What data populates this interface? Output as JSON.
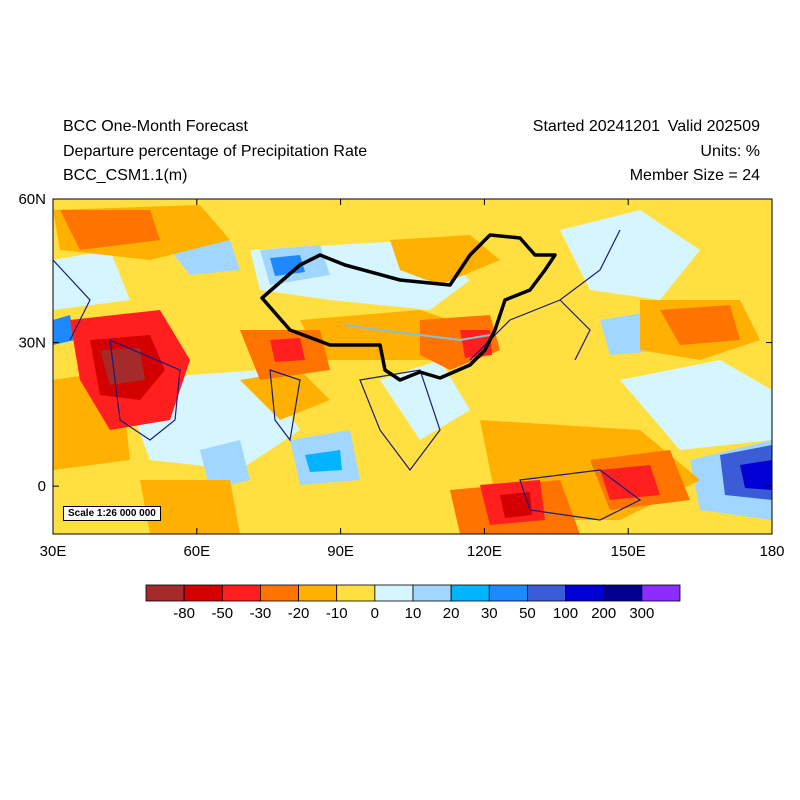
{
  "header": {
    "title": "BCC One-Month Forecast",
    "subtitle": "Departure percentage of Precipitation Rate",
    "model": "BCC_CSM1.1(m)",
    "started": "Started 20241201",
    "valid": "Valid 202509",
    "units": "Units: %",
    "member_size": "Member Size = 24"
  },
  "map": {
    "x_ticks": [
      "30E",
      "60E",
      "90E",
      "120E",
      "150E",
      "180"
    ],
    "y_ticks": [
      "60N",
      "30N",
      "0"
    ],
    "lon_range": [
      30,
      180
    ],
    "lat_range": [
      -10,
      60
    ],
    "scale_text": "Scale 1:26 000 000"
  },
  "colorbar": {
    "labels": [
      "-80",
      "-50",
      "-30",
      "-20",
      "-10",
      "0",
      "10",
      "20",
      "30",
      "50",
      "100",
      "200",
      "300"
    ],
    "colors": [
      "#a52a2a",
      "#d40000",
      "#ff1f1f",
      "#ff7400",
      "#ffb000",
      "#ffe040",
      "#d5f5ff",
      "#a0d6ff",
      "#00b4ff",
      "#1e88ff",
      "#3a5cd6",
      "#0000d4",
      "#00008c",
      "#8c2cff"
    ]
  }
}
